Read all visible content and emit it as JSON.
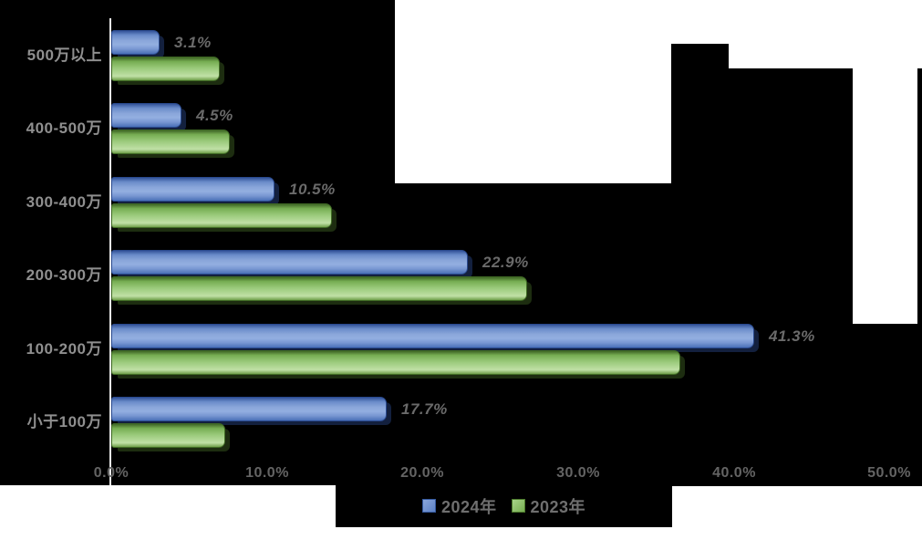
{
  "chart_data": {
    "type": "bar",
    "orientation": "horizontal",
    "title": "",
    "xlabel": "",
    "ylabel": "",
    "categories": [
      "500万以上",
      "400-500万",
      "300-400万",
      "200-300万",
      "100-200万",
      "小于100万"
    ],
    "series": [
      {
        "name": "2024年",
        "color": "#4472c4",
        "values": [
          3.1,
          4.5,
          10.5,
          22.9,
          41.3,
          17.7
        ],
        "labels": [
          "3.1%",
          "4.5%",
          "10.5%",
          "22.9%",
          "41.3%",
          "17.7%"
        ],
        "labels_shown": true
      },
      {
        "name": "2023年",
        "color": "#70ad47",
        "values": [
          7.0,
          7.6,
          14.2,
          26.7,
          36.6,
          7.3
        ],
        "labels": [],
        "labels_shown": false,
        "note": "values estimated from bar lengths; no data labels rendered in chart"
      }
    ],
    "x_ticks": [
      "0.0%",
      "10.0%",
      "20.0%",
      "30.0%",
      "40.0%",
      "50.0%"
    ],
    "xlim": [
      0,
      50
    ],
    "grid": false,
    "legend_position": "bottom"
  },
  "legend": {
    "items": [
      {
        "label": "2024年",
        "color": "#4472c4"
      },
      {
        "label": "2023年",
        "color": "#70ad47"
      }
    ]
  },
  "colors": {
    "background": "#000000",
    "background_patches": "#ffffff",
    "axis_line": "#ededed",
    "category_label_text": "#8f8f8f",
    "tick_label_text": "#646464",
    "data_label_text": "#6a6a6a",
    "legend_text": "#6f6f6f",
    "series_blue": "#4472c4",
    "series_green": "#70ad47"
  }
}
